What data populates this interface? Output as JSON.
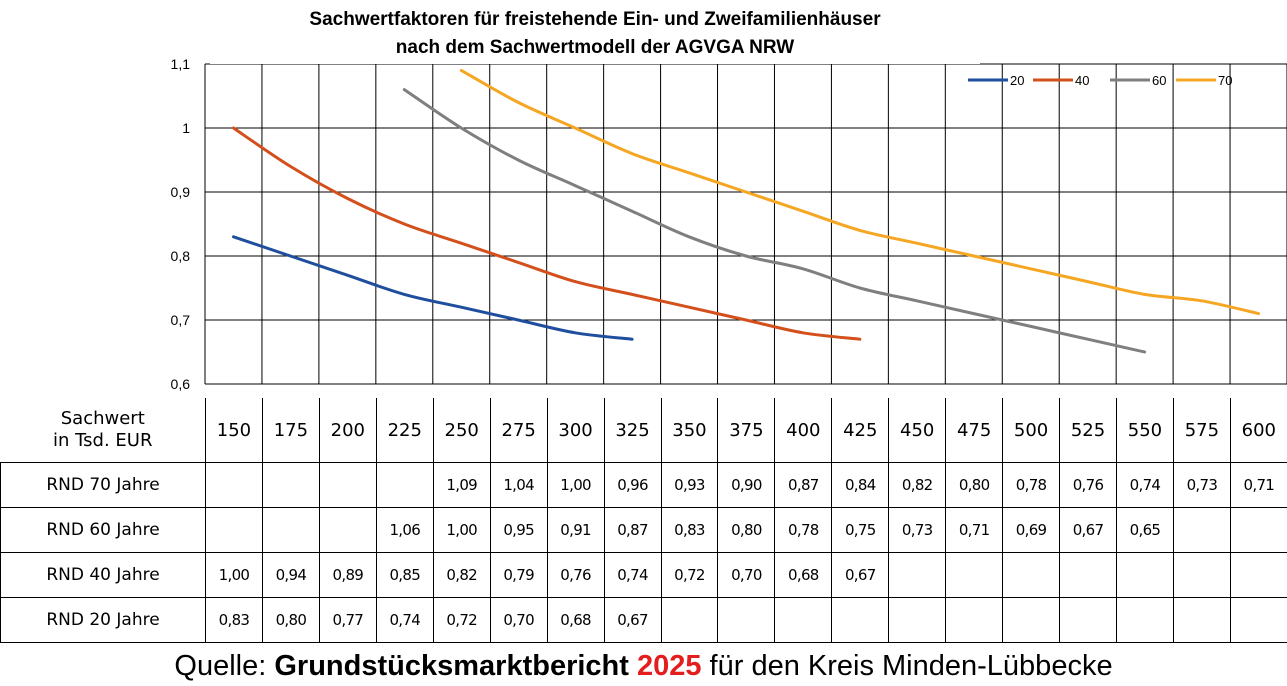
{
  "chart_data": {
    "type": "line",
    "title": "Sachwertfaktoren für freistehende Ein- und Zweifamilienhäuser",
    "subtitle": "nach dem Sachwertmodell der AGVGA NRW",
    "ylim": [
      0.6,
      1.1
    ],
    "yticks": [
      "0,6",
      "0,7",
      "0,8",
      "0,9",
      "1",
      "1,1"
    ],
    "x": [
      150,
      175,
      200,
      225,
      250,
      275,
      300,
      325,
      350,
      375,
      400,
      425,
      450,
      475,
      500,
      525,
      550,
      575,
      600
    ],
    "series": [
      {
        "name": "20",
        "color": "#1f4e9e",
        "values": [
          0.83,
          0.8,
          0.77,
          0.74,
          0.72,
          0.7,
          0.68,
          0.67,
          null,
          null,
          null,
          null,
          null,
          null,
          null,
          null,
          null,
          null,
          null
        ]
      },
      {
        "name": "40",
        "color": "#d3501c",
        "values": [
          1.0,
          0.94,
          0.89,
          0.85,
          0.82,
          0.79,
          0.76,
          0.74,
          0.72,
          0.7,
          0.68,
          0.67,
          null,
          null,
          null,
          null,
          null,
          null,
          null
        ]
      },
      {
        "name": "60",
        "color": "#7f7f7f",
        "values": [
          null,
          null,
          null,
          1.06,
          1.0,
          0.95,
          0.91,
          0.87,
          0.83,
          0.8,
          0.78,
          0.75,
          0.73,
          0.71,
          0.69,
          0.67,
          0.65,
          null,
          null
        ]
      },
      {
        "name": "70",
        "color": "#f5a623",
        "values": [
          null,
          null,
          null,
          null,
          1.09,
          1.04,
          1.0,
          0.96,
          0.93,
          0.9,
          0.87,
          0.84,
          0.82,
          0.8,
          0.78,
          0.76,
          0.74,
          0.73,
          0.71
        ]
      }
    ],
    "legend": [
      "20",
      "40",
      "60",
      "70"
    ],
    "legend_position": "top-right",
    "grid": true
  },
  "table": {
    "header_line1": "Sachwert",
    "header_line2": "in Tsd. EUR",
    "columns": [
      "150",
      "175",
      "200",
      "225",
      "250",
      "275",
      "300",
      "325",
      "350",
      "375",
      "400",
      "425",
      "450",
      "475",
      "500",
      "525",
      "550",
      "575",
      "600"
    ],
    "rows": [
      {
        "label": "RND 70 Jahre",
        "cells": [
          "",
          "",
          "",
          "",
          "1,09",
          "1,04",
          "1,00",
          "0,96",
          "0,93",
          "0,90",
          "0,87",
          "0,84",
          "0,82",
          "0,80",
          "0,78",
          "0,76",
          "0,74",
          "0,73",
          "0,71"
        ]
      },
      {
        "label": "RND 60 Jahre",
        "cells": [
          "",
          "",
          "",
          "1,06",
          "1,00",
          "0,95",
          "0,91",
          "0,87",
          "0,83",
          "0,80",
          "0,78",
          "0,75",
          "0,73",
          "0,71",
          "0,69",
          "0,67",
          "0,65",
          "",
          ""
        ]
      },
      {
        "label": "RND 40 Jahre",
        "cells": [
          "1,00",
          "0,94",
          "0,89",
          "0,85",
          "0,82",
          "0,79",
          "0,76",
          "0,74",
          "0,72",
          "0,70",
          "0,68",
          "0,67",
          "",
          "",
          "",
          "",
          "",
          "",
          ""
        ]
      },
      {
        "label": "RND 20 Jahre",
        "cells": [
          "0,83",
          "0,80",
          "0,77",
          "0,74",
          "0,72",
          "0,70",
          "0,68",
          "0,67",
          "",
          "",
          "",
          "",
          "",
          "",
          "",
          "",
          "",
          "",
          ""
        ]
      }
    ]
  },
  "source": {
    "prefix": "Quelle: ",
    "report": "Grundstücksmarktbericht",
    "year": "2025",
    "suffix": " für den Kreis Minden-Lübbecke"
  }
}
